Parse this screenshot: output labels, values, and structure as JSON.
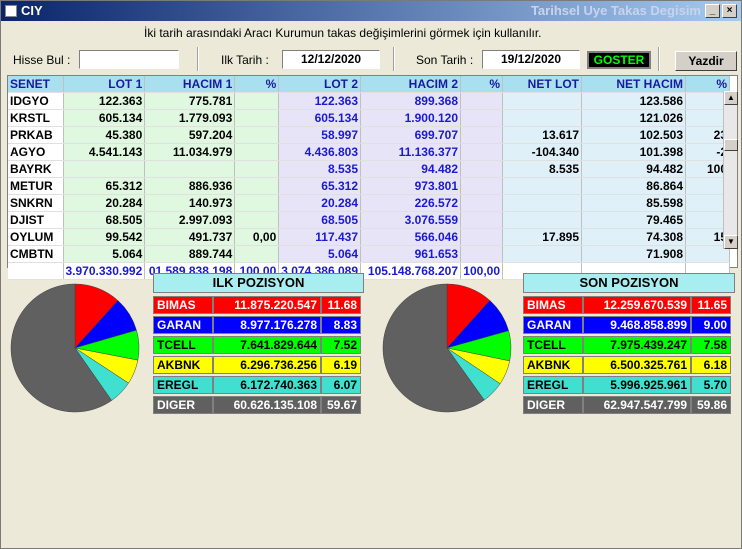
{
  "window": {
    "title": "CIY",
    "subtitle": "Tarihsel Uye Takas Degisim"
  },
  "hint": "İki tarih arasındaki  Aracı Kurumun takas değişimlerini görmek için kullanılır.",
  "toolbar": {
    "hisse_label": "Hisse Bul :",
    "hisse_value": "",
    "ilk_label": "Ilk Tarih :",
    "ilk_value": "12/12/2020",
    "son_label": "Son Tarih :",
    "son_value": "19/12/2020",
    "goster_label": "GOSTER",
    "yazdir_label": "Yazdir"
  },
  "grid": {
    "headers": [
      "SENET",
      "LOT 1",
      "HACIM 1",
      "%",
      "LOT 2",
      "HACIM 2",
      "%",
      "NET LOT",
      "NET HACIM",
      "%"
    ],
    "rows": [
      [
        "IDGYO",
        "122.363",
        "775.781",
        "",
        "122.363",
        "899.368",
        "",
        "",
        "123.586",
        ""
      ],
      [
        "KRSTL",
        "605.134",
        "1.779.093",
        "",
        "605.134",
        "1.900.120",
        "",
        "",
        "121.026",
        ""
      ],
      [
        "PRKAB",
        "45.380",
        "597.204",
        "",
        "58.997",
        "699.707",
        "",
        "13.617",
        "102.503",
        "23"
      ],
      [
        "AGYO",
        "4.541.143",
        "11.034.979",
        "",
        "4.436.803",
        "11.136.377",
        "",
        "-104.340",
        "101.398",
        "-2"
      ],
      [
        "BAYRK",
        "",
        "",
        "",
        "8.535",
        "94.482",
        "",
        "8.535",
        "94.482",
        "100"
      ],
      [
        "METUR",
        "65.312",
        "886.936",
        "",
        "65.312",
        "973.801",
        "",
        "",
        "86.864",
        ""
      ],
      [
        "SNKRN",
        "20.284",
        "140.973",
        "",
        "20.284",
        "226.572",
        "",
        "",
        "85.598",
        ""
      ],
      [
        "DJIST",
        "68.505",
        "2.997.093",
        "",
        "68.505",
        "3.076.559",
        "",
        "",
        "79.465",
        ""
      ],
      [
        "OYLUM",
        "99.542",
        "491.737",
        "0,00",
        "117.437",
        "566.046",
        "",
        "17.895",
        "74.308",
        "15"
      ],
      [
        "CMBTN",
        "5.064",
        "889.744",
        "",
        "5.064",
        "961.653",
        "",
        "",
        "71.908",
        ""
      ]
    ],
    "totals": [
      "",
      "3.970.330.992",
      "01.589.838.198",
      "100,00",
      "3.074.386.089",
      "105.148.768.207",
      "100,00",
      "",
      "",
      ""
    ]
  },
  "ilk": {
    "title": "ILK POZISYON",
    "items": [
      {
        "name": "BIMAS",
        "value": "11.875.220.547",
        "pct": "11.68",
        "pct_value": 11.68,
        "color": "#ff0000",
        "text": "#ffffff"
      },
      {
        "name": "GARAN",
        "value": "8.977.176.278",
        "pct": "8.83",
        "pct_value": 8.83,
        "color": "#0000ff",
        "text": "#ffffff"
      },
      {
        "name": "TCELL",
        "value": "7.641.829.644",
        "pct": "7.52",
        "pct_value": 7.52,
        "color": "#00ff00",
        "text": "#000000"
      },
      {
        "name": "AKBNK",
        "value": "6.296.736.256",
        "pct": "6.19",
        "pct_value": 6.19,
        "color": "#ffff00",
        "text": "#000000"
      },
      {
        "name": "EREGL",
        "value": "6.172.740.363",
        "pct": "6.07",
        "pct_value": 6.07,
        "color": "#40e0d0",
        "text": "#000000"
      },
      {
        "name": "DIGER",
        "value": "60.626.135.108",
        "pct": "59.67",
        "pct_value": 59.67,
        "color": "#606060",
        "text": "#ffffff"
      }
    ]
  },
  "son": {
    "title": "SON POZISYON",
    "items": [
      {
        "name": "BIMAS",
        "value": "12.259.670.539",
        "pct": "11.65",
        "pct_value": 11.65,
        "color": "#ff0000",
        "text": "#ffffff"
      },
      {
        "name": "GARAN",
        "value": "9.468.858.899",
        "pct": "9.00",
        "pct_value": 9.0,
        "color": "#0000ff",
        "text": "#ffffff"
      },
      {
        "name": "TCELL",
        "value": "7.975.439.247",
        "pct": "7.58",
        "pct_value": 7.58,
        "color": "#00ff00",
        "text": "#000000"
      },
      {
        "name": "AKBNK",
        "value": "6.500.325.761",
        "pct": "6.18",
        "pct_value": 6.18,
        "color": "#ffff00",
        "text": "#000000"
      },
      {
        "name": "EREGL",
        "value": "5.996.925.961",
        "pct": "5.70",
        "pct_value": 5.7,
        "color": "#40e0d0",
        "text": "#000000"
      },
      {
        "name": "DIGER",
        "value": "62.947.547.799",
        "pct": "59.86",
        "pct_value": 59.86,
        "color": "#606060",
        "text": "#ffffff"
      }
    ]
  },
  "icons": {
    "app": "app-icon",
    "minimize": "minimize-icon",
    "close": "close-icon",
    "scroll_up": "arrow-up-icon",
    "scroll_down": "arrow-down-icon"
  }
}
